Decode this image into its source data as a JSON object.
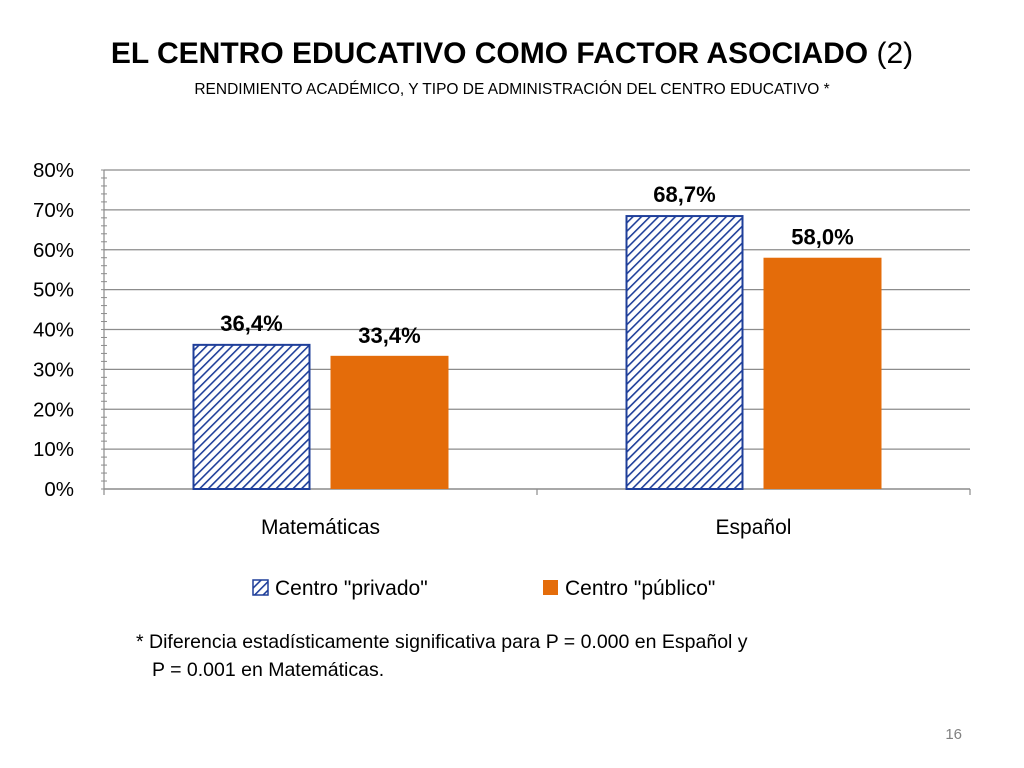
{
  "slide": {
    "title_bold": "EL CENTRO EDUCATIVO COMO FACTOR ASOCIADO",
    "title_rest": " (2)",
    "subtitle": "RENDIMIENTO ACADÉMICO, Y TIPO DE ADMINISTRACIÓN DEL CENTRO EDUCATIVO *",
    "footnote_line1": "* Diferencia estadísticamente significativa para P = 0.000 en Español y",
    "footnote_line2": "P = 0.001 en Matemáticas.",
    "page_number": "16"
  },
  "chart_data": {
    "type": "bar",
    "categories": [
      "Matemáticas",
      "Español"
    ],
    "series": [
      {
        "name": "Centro \"privado\"",
        "values": [
          36.4,
          68.7
        ],
        "labels": [
          "36,4%",
          "68,7%"
        ],
        "fill": "hatch",
        "color": "#1F3F9A"
      },
      {
        "name": "Centro \"público\"",
        "values": [
          33.4,
          58.0
        ],
        "labels": [
          "33,4%",
          "58,0%"
        ],
        "fill": "solid",
        "color": "#E46C0A"
      }
    ],
    "yticks": [
      "0%",
      "10%",
      "20%",
      "30%",
      "40%",
      "50%",
      "60%",
      "70%",
      "80%"
    ],
    "ylim": [
      0,
      80
    ],
    "grid": true,
    "legend_position": "bottom"
  }
}
